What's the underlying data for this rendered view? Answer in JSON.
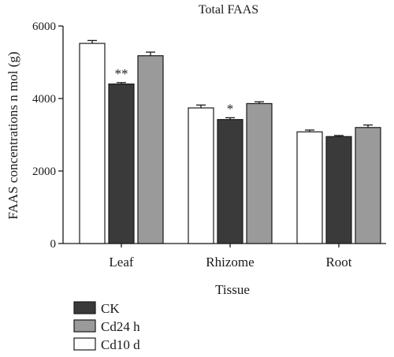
{
  "chart_data": {
    "type": "bar",
    "title": "Total FAAS",
    "xlabel": "Tissue",
    "ylabel": "FAAS concentrations n mol (g)",
    "ylim": [
      0,
      6000
    ],
    "yticks": [
      0,
      2000,
      4000,
      6000
    ],
    "categories": [
      "Leaf",
      "Rhizome",
      "Root"
    ],
    "bar_order": [
      "Cd10 d",
      "CK",
      "Cd24 h"
    ],
    "series": [
      {
        "name": "CK",
        "values": [
          4400,
          3420,
          2950
        ],
        "errors": [
          40,
          50,
          30
        ],
        "significance": [
          "**",
          "*",
          ""
        ],
        "color": "#3a3a3a"
      },
      {
        "name": "Cd24 h",
        "values": [
          5180,
          3860,
          3200
        ],
        "errors": [
          100,
          50,
          70
        ],
        "significance": [
          "",
          "",
          ""
        ],
        "color": "#9a9a9a"
      },
      {
        "name": "Cd10 d",
        "values": [
          5520,
          3740,
          3080
        ],
        "errors": [
          80,
          80,
          50
        ],
        "significance": [
          "",
          "",
          ""
        ],
        "color": "#ffffff"
      }
    ],
    "legend": [
      "CK",
      "Cd24 h",
      "Cd10 d"
    ],
    "legend_position": "bottom-left",
    "grid": false
  }
}
